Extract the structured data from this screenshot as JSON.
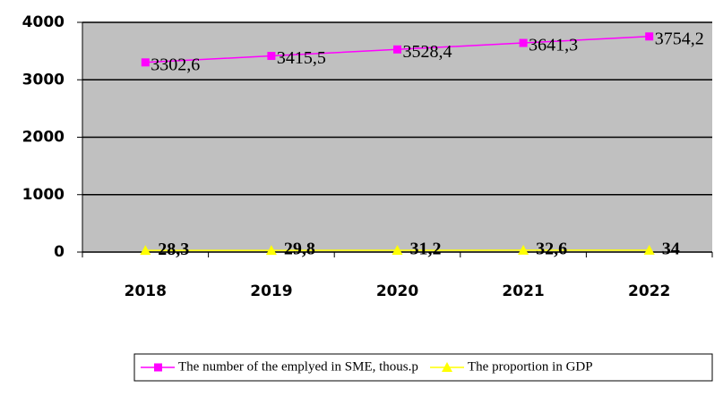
{
  "chart_data": {
    "type": "line",
    "categories": [
      "2018",
      "2019",
      "2020",
      "2021",
      "2022"
    ],
    "series": [
      {
        "name": "The number of the emplyed in SME, thous.p",
        "color": "#ff00ff",
        "marker": "square",
        "values": [
          3302.6,
          3415.5,
          3528.4,
          3641.3,
          3754.2
        ],
        "value_labels": [
          "3302,6",
          "3415,5",
          "3528,4",
          "3641,3",
          "3754,2"
        ]
      },
      {
        "name": "The proportion in GDP",
        "color": "#ffff00",
        "marker": "triangle",
        "values": [
          28.3,
          29.8,
          31.2,
          32.6,
          34
        ],
        "value_labels": [
          "28,3",
          "29,8",
          "31,2",
          "32,6",
          "34"
        ]
      }
    ],
    "ylim": [
      0,
      4000
    ],
    "yticks": [
      0,
      1000,
      2000,
      3000,
      4000
    ],
    "grid": true,
    "plot_background": "#c0c0c0",
    "legend": "bottom"
  }
}
